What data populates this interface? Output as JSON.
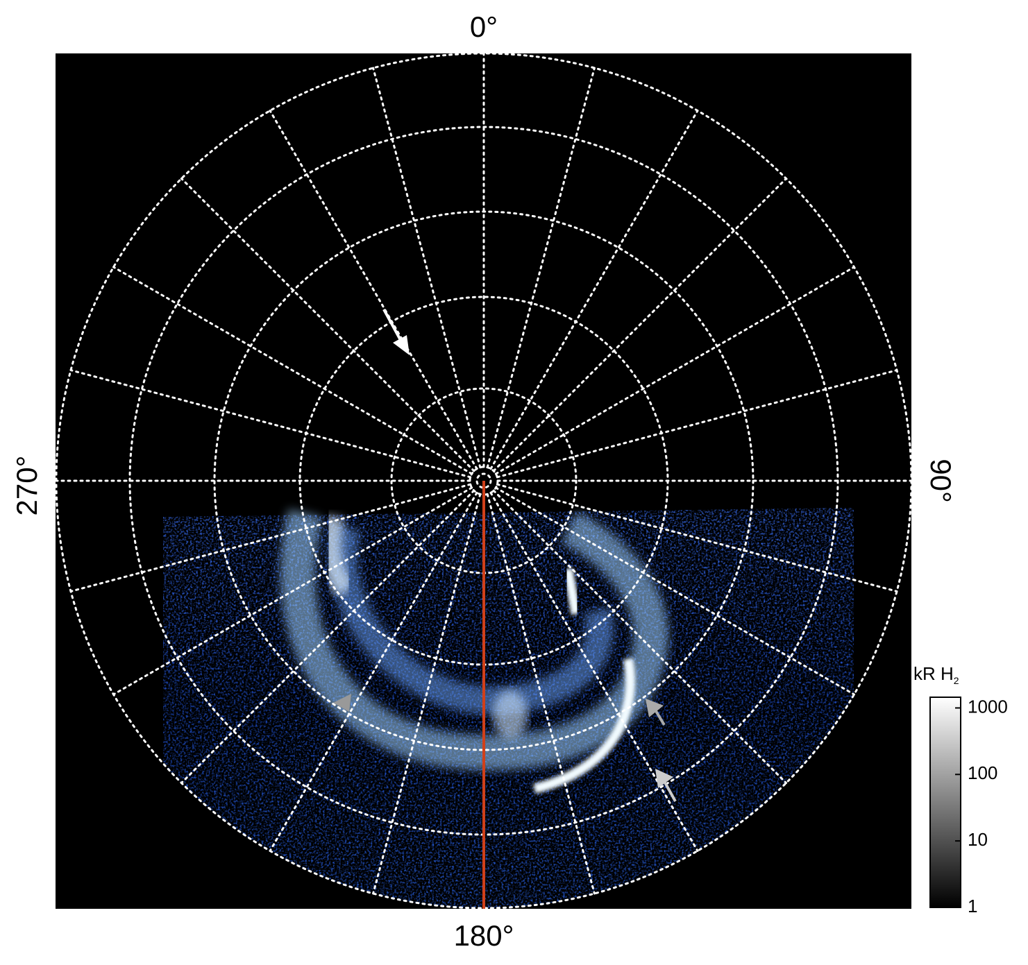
{
  "labels": {
    "top": "0°",
    "bottom": "180°",
    "left": "270°",
    "right": "90°"
  },
  "colorbar": {
    "label": "kR H",
    "label_sub": "2",
    "log": true,
    "lim": [
      1,
      1450
    ],
    "ticks": [
      1,
      10,
      100,
      1000
    ]
  }
}
